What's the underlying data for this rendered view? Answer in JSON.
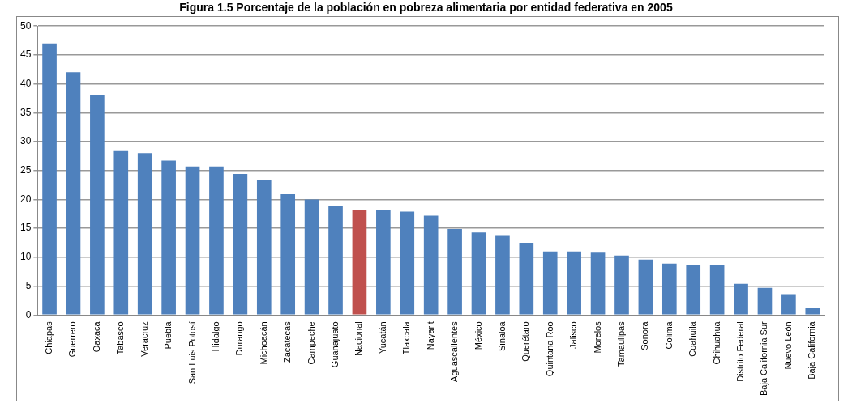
{
  "chart_data": {
    "type": "bar",
    "title": "Figura 1.5 Porcentaje de la población en pobreza alimentaria por entidad federativa en 2005",
    "categories": [
      "Chiapas",
      "Guerrero",
      "Oaxaca",
      "Tabasco",
      "Veracruz",
      "Puebla",
      "San Luis Potosí",
      "Hidalgo",
      "Durango",
      "Michoacán",
      "Zacatecas",
      "Campeche",
      "Guanajuato",
      "Nacional",
      "Yucatán",
      "Tlaxcala",
      "Nayarit",
      "Aguascalientes",
      "México",
      "Sinaloa",
      "Querétaro",
      "Quintana Roo",
      "Jalisco",
      "Morelos",
      "Tamaulipas",
      "Sonora",
      "Colima",
      "Coahuila",
      "Chihuahua",
      "Distrito Federal",
      "Baja California Sur",
      "Nuevo León",
      "Baja California"
    ],
    "values": [
      47.0,
      42.0,
      38.1,
      28.5,
      28.0,
      26.7,
      25.7,
      25.7,
      24.4,
      23.3,
      20.9,
      20.0,
      18.9,
      18.2,
      18.1,
      17.9,
      17.2,
      14.9,
      14.3,
      13.7,
      12.5,
      11.0,
      11.0,
      10.8,
      10.3,
      9.6,
      8.9,
      8.6,
      8.6,
      5.4,
      4.7,
      3.6,
      1.3
    ],
    "colors": [
      "#4f81bd",
      "#4f81bd",
      "#4f81bd",
      "#4f81bd",
      "#4f81bd",
      "#4f81bd",
      "#4f81bd",
      "#4f81bd",
      "#4f81bd",
      "#4f81bd",
      "#4f81bd",
      "#4f81bd",
      "#4f81bd",
      "#c0504d",
      "#4f81bd",
      "#4f81bd",
      "#4f81bd",
      "#4f81bd",
      "#4f81bd",
      "#4f81bd",
      "#4f81bd",
      "#4f81bd",
      "#4f81bd",
      "#4f81bd",
      "#4f81bd",
      "#4f81bd",
      "#4f81bd",
      "#4f81bd",
      "#4f81bd",
      "#4f81bd",
      "#4f81bd",
      "#4f81bd",
      "#4f81bd"
    ],
    "ylim": [
      0,
      50
    ],
    "yticks": [
      0,
      5,
      10,
      15,
      20,
      25,
      30,
      35,
      40,
      45,
      50
    ],
    "grid": "y",
    "legend": false
  }
}
